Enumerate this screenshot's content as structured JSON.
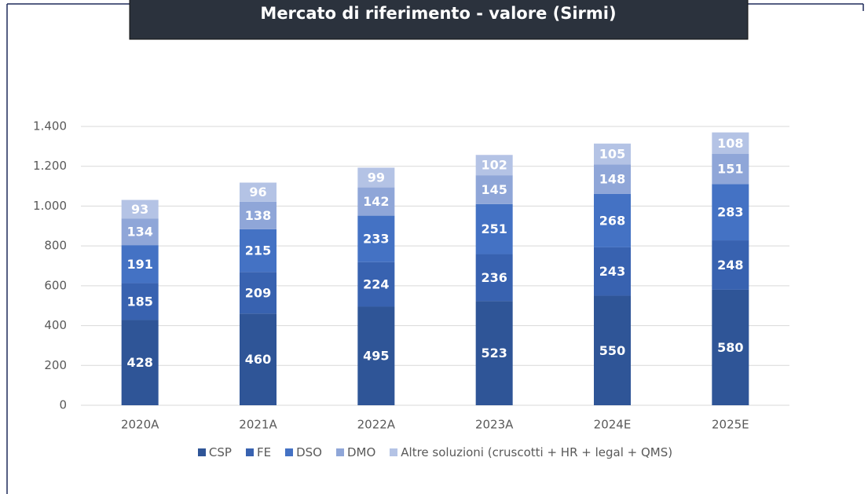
{
  "chart_data": {
    "type": "stacked_bar",
    "title": "Mercato di riferimento - valore (Sirmi)",
    "categories": [
      "2020A",
      "2021A",
      "2022A",
      "2023A",
      "2024E",
      "2025E"
    ],
    "series": [
      {
        "name": "CSP",
        "color": "#2f5597",
        "values": [
          428,
          460,
          495,
          523,
          550,
          580
        ]
      },
      {
        "name": "FE",
        "color": "#3862b0",
        "values": [
          185,
          209,
          224,
          236,
          243,
          248
        ]
      },
      {
        "name": "DSO",
        "color": "#4472c4",
        "values": [
          191,
          215,
          233,
          251,
          268,
          283
        ]
      },
      {
        "name": "DMO",
        "color": "#8fa6d8",
        "values": [
          134,
          138,
          142,
          145,
          148,
          151
        ]
      },
      {
        "name": "Altre soluzioni (cruscotti + HR + legal + QMS)",
        "color": "#b4c3e5",
        "values": [
          93,
          96,
          99,
          102,
          105,
          108
        ]
      }
    ],
    "ylim": [
      0,
      1400
    ],
    "yticks": [
      0,
      200,
      400,
      600,
      800,
      {
        "value": 1000,
        "label": "1.000"
      },
      {
        "value": 1200,
        "label": "1.200"
      },
      {
        "value": 1400,
        "label": "1.400"
      }
    ],
    "grid": true,
    "legend": "bottom"
  }
}
